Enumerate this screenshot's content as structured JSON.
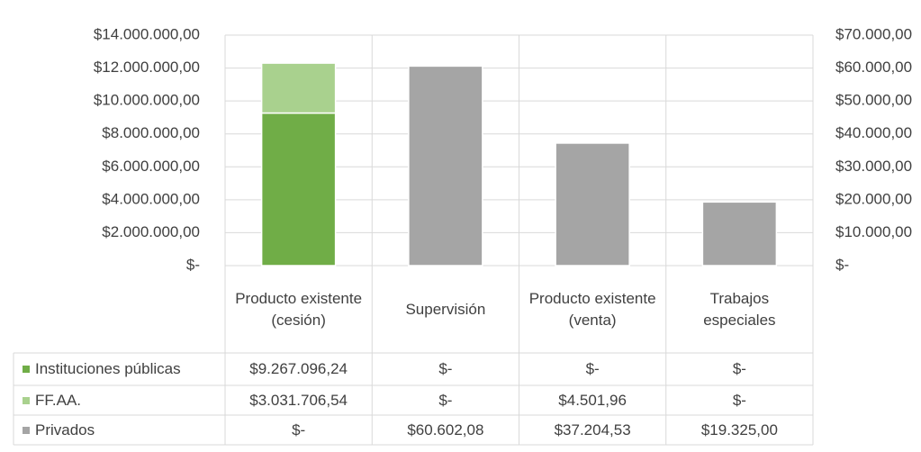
{
  "chart_data": {
    "type": "bar",
    "stacked": true,
    "data_table": true,
    "grid": true,
    "categories": [
      "Producto existente (cesión)",
      "Supervisión",
      "Producto existente (venta)",
      "Trabajos especiales"
    ],
    "series": [
      {
        "name": "Instituciones públicas",
        "color": "#70ad47",
        "axis": "y",
        "values": [
          9267096.24,
          0,
          0,
          0
        ],
        "value_labels": [
          "$9.267.096,24",
          "$-",
          "$-",
          "$-"
        ]
      },
      {
        "name": "FF.AA.",
        "color": "#a9d18e",
        "axis": "y",
        "values": [
          3031706.54,
          0,
          4501.96,
          0
        ],
        "value_labels": [
          "$3.031.706,54",
          "$-",
          "$4.501,96",
          "$-"
        ]
      },
      {
        "name": "Privados",
        "color": "#a5a5a5",
        "axis": "y2",
        "values": [
          0,
          60602.08,
          37204.53,
          19325
        ],
        "value_labels": [
          "$-",
          "$60.602,08",
          "$37.204,53",
          "$19.325,00"
        ]
      }
    ],
    "ylim": [
      0,
      14000000
    ],
    "yticks": [
      {
        "value": 0,
        "label": "$-"
      },
      {
        "value": 2000000,
        "label": "$2.000.000,00"
      },
      {
        "value": 4000000,
        "label": "$4.000.000,00"
      },
      {
        "value": 6000000,
        "label": "$6.000.000,00"
      },
      {
        "value": 8000000,
        "label": "$8.000.000,00"
      },
      {
        "value": 10000000,
        "label": "$10.000.000,00"
      },
      {
        "value": 12000000,
        "label": "$12.000.000,00"
      },
      {
        "value": 14000000,
        "label": "$14.000.000,00"
      }
    ],
    "y2lim": [
      0,
      70000
    ],
    "y2ticks": [
      {
        "value": 0,
        "label": "$-"
      },
      {
        "value": 10000,
        "label": "$10.000,00"
      },
      {
        "value": 20000,
        "label": "$20.000,00"
      },
      {
        "value": 30000,
        "label": "$30.000,00"
      },
      {
        "value": 40000,
        "label": "$40.000,00"
      },
      {
        "value": 50000,
        "label": "$50.000,00"
      },
      {
        "value": 60000,
        "label": "$60.000,00"
      },
      {
        "value": 70000,
        "label": "$70.000,00"
      }
    ]
  }
}
